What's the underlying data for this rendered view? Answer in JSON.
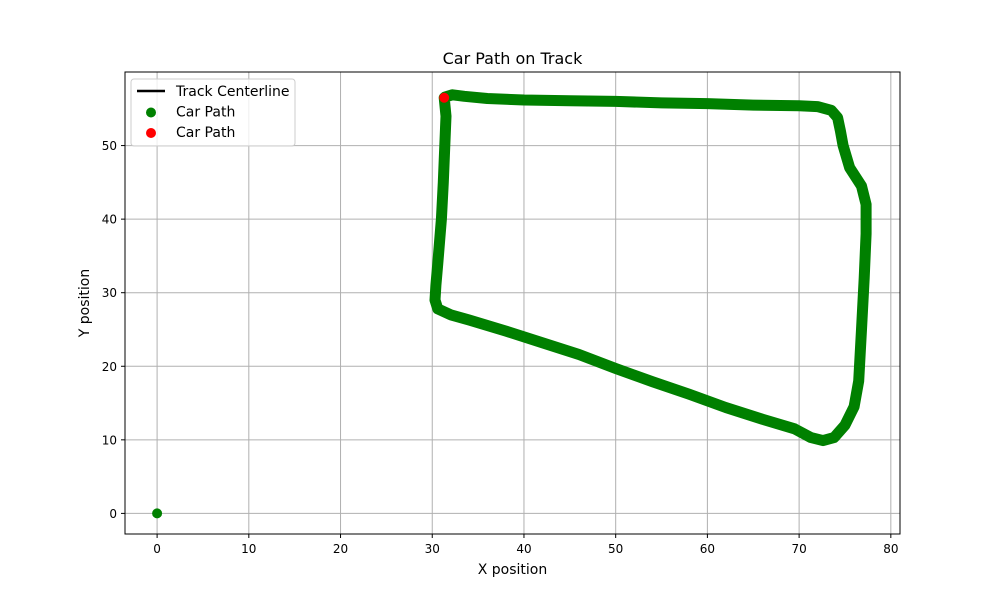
{
  "chart_data": {
    "type": "scatter",
    "title": "Car Path on Track",
    "xlabel": "X position",
    "ylabel": "Y position",
    "xlim": [
      -3.5,
      81
    ],
    "ylim": [
      -2.8,
      60
    ],
    "xticks": [
      0,
      10,
      20,
      30,
      40,
      50,
      60,
      70,
      80
    ],
    "yticks": [
      0,
      10,
      20,
      30,
      40,
      50
    ],
    "grid": true,
    "legend": {
      "position": "top-left",
      "entries": [
        {
          "label": "Track Centerline",
          "kind": "line",
          "color": "#000000"
        },
        {
          "label": "Car Path",
          "kind": "marker",
          "color": "#008000"
        },
        {
          "label": "Car Path",
          "kind": "marker",
          "color": "#ff0000"
        }
      ]
    },
    "series": [
      {
        "name": "Car Path",
        "color": "#008000",
        "path": [
          [
            31.3,
            56.5
          ],
          [
            31.5,
            54
          ],
          [
            31.3,
            48
          ],
          [
            31.2,
            45
          ],
          [
            31.0,
            40
          ],
          [
            30.8,
            37
          ],
          [
            30.6,
            34
          ],
          [
            30.4,
            31
          ],
          [
            30.3,
            29
          ],
          [
            30.6,
            27.8
          ],
          [
            32,
            27
          ],
          [
            34,
            26.3
          ],
          [
            38,
            24.8
          ],
          [
            42,
            23.2
          ],
          [
            46,
            21.6
          ],
          [
            50,
            19.7
          ],
          [
            54,
            17.9
          ],
          [
            58,
            16.2
          ],
          [
            62,
            14.4
          ],
          [
            66,
            12.8
          ],
          [
            69.5,
            11.5
          ],
          [
            71.3,
            10.3
          ],
          [
            72.6,
            9.9
          ],
          [
            73.8,
            10.3
          ],
          [
            75.0,
            12.0
          ],
          [
            76.0,
            14.5
          ],
          [
            76.5,
            18
          ],
          [
            76.8,
            25
          ],
          [
            77.1,
            32
          ],
          [
            77.3,
            38
          ],
          [
            77.3,
            42
          ],
          [
            76.8,
            44.5
          ],
          [
            75.5,
            47
          ],
          [
            74.8,
            50
          ],
          [
            74.5,
            52
          ],
          [
            74.2,
            53.8
          ],
          [
            73.5,
            54.8
          ],
          [
            72,
            55.3
          ],
          [
            70,
            55.4
          ],
          [
            65,
            55.5
          ],
          [
            60,
            55.7
          ],
          [
            55,
            55.8
          ],
          [
            50,
            56.0
          ],
          [
            45,
            56.1
          ],
          [
            40,
            56.2
          ],
          [
            36,
            56.4
          ],
          [
            33.5,
            56.7
          ],
          [
            32.2,
            56.9
          ],
          [
            31.4,
            56.6
          ]
        ]
      },
      {
        "name": "",
        "color": "#008000",
        "points": [
          [
            0,
            0
          ]
        ]
      },
      {
        "name": "Car Path",
        "color": "#ff0000",
        "points": [
          [
            31.3,
            56.5
          ]
        ]
      }
    ]
  }
}
